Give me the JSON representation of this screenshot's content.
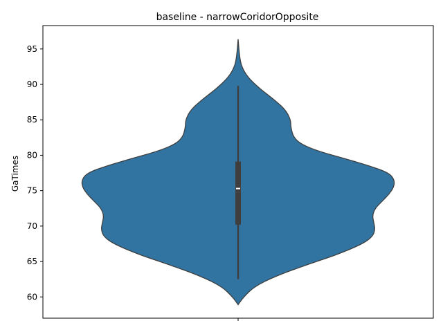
{
  "chart_data": {
    "type": "violin",
    "title": "baseline - narrowCoridorOpposite",
    "xlabel": "",
    "ylabel": "GaTimes",
    "ylim": [
      57.0,
      98.3
    ],
    "yticks": [
      60,
      65,
      70,
      75,
      80,
      85,
      90,
      95
    ],
    "grid": false,
    "legend": "none",
    "violin_color": "#3274a1",
    "edge_color": "#3f3f3f",
    "box_color": "#3f3f3f",
    "median_color": "#ffffff",
    "violin_outline": [
      {
        "y": 58.9,
        "halfwidth": 0.0
      },
      {
        "y": 60.0,
        "halfwidth": 8
      },
      {
        "y": 61.5,
        "halfwidth": 24
      },
      {
        "y": 63.0,
        "halfwidth": 56
      },
      {
        "y": 64.5,
        "halfwidth": 98
      },
      {
        "y": 66.0,
        "halfwidth": 144
      },
      {
        "y": 67.5,
        "halfwidth": 180
      },
      {
        "y": 68.5,
        "halfwidth": 194
      },
      {
        "y": 69.5,
        "halfwidth": 198
      },
      {
        "y": 70.5,
        "halfwidth": 196
      },
      {
        "y": 71.5,
        "halfwidth": 194
      },
      {
        "y": 72.5,
        "halfwidth": 198
      },
      {
        "y": 73.5,
        "halfwidth": 208
      },
      {
        "y": 74.5,
        "halfwidth": 218
      },
      {
        "y": 75.5,
        "halfwidth": 225
      },
      {
        "y": 76.5,
        "halfwidth": 226
      },
      {
        "y": 77.5,
        "halfwidth": 218
      },
      {
        "y": 78.5,
        "halfwidth": 190
      },
      {
        "y": 79.5,
        "halfwidth": 155
      },
      {
        "y": 80.5,
        "halfwidth": 118
      },
      {
        "y": 81.5,
        "halfwidth": 92
      },
      {
        "y": 82.5,
        "halfwidth": 80
      },
      {
        "y": 84.0,
        "halfwidth": 76
      },
      {
        "y": 85.0,
        "halfwidth": 76
      },
      {
        "y": 86.5,
        "halfwidth": 68
      },
      {
        "y": 88.0,
        "halfwidth": 50
      },
      {
        "y": 89.5,
        "halfwidth": 30
      },
      {
        "y": 91.0,
        "halfwidth": 14
      },
      {
        "y": 92.5,
        "halfwidth": 5
      },
      {
        "y": 94.0,
        "halfwidth": 2
      },
      {
        "y": 96.4,
        "halfwidth": 0.0
      }
    ],
    "box": {
      "whisker_low": 62.5,
      "q1": 70.2,
      "median": 75.3,
      "q3": 79.1,
      "whisker_high": 89.8
    }
  }
}
